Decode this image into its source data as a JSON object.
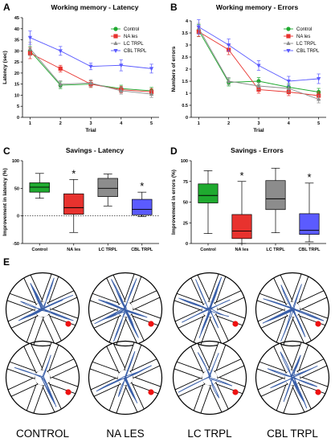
{
  "panels": {
    "a": {
      "letter": "A",
      "title": "Working memory - Latency"
    },
    "b": {
      "letter": "B",
      "title": "Working memory - Errors"
    },
    "c": {
      "letter": "C",
      "title": "Savings - Latency"
    },
    "d": {
      "letter": "D",
      "title": "Savings - Errors"
    },
    "e": {
      "letter": "E"
    }
  },
  "colors": {
    "control": "#1faa2f",
    "na_les": "#e8322e",
    "lc_trpl": "#8c8c8c",
    "cbl_trpl": "#5b5bff",
    "path": "#3a5fa8",
    "target": "#ee1111"
  },
  "chart_data": [
    {
      "type": "line",
      "title": "Working memory - Latency",
      "xlabel": "Trial",
      "ylabel": "Latency (sec)",
      "x": [
        1,
        2,
        3,
        4,
        5
      ],
      "xlim": [
        0.75,
        5.25
      ],
      "ylim": [
        0,
        45
      ],
      "yticks": [
        0,
        5,
        10,
        15,
        20,
        25,
        30,
        35,
        40,
        45
      ],
      "legend": "top-right",
      "grid": false,
      "series": [
        {
          "name": "Control",
          "values": [
            30,
            14.5,
            15,
            13,
            12
          ],
          "err": [
            2,
            1.5,
            1.5,
            1.5,
            1.5
          ],
          "marker": "circle",
          "color": "#1faa2f"
        },
        {
          "name": "NA les",
          "values": [
            29,
            22,
            15,
            12.5,
            11.5
          ],
          "err": [
            2.5,
            1.5,
            1.5,
            1.5,
            1.5
          ],
          "marker": "square",
          "color": "#e8322e"
        },
        {
          "name": "LC TRPL",
          "values": [
            31,
            15,
            15.5,
            12,
            10.5
          ],
          "err": [
            3,
            1.5,
            1.5,
            1.5,
            1.5
          ],
          "marker": "triangle-up",
          "color": "#8c8c8c"
        },
        {
          "name": "CBL TRPL",
          "values": [
            36,
            30,
            23,
            23.5,
            22
          ],
          "err": [
            3,
            2,
            1.5,
            2.5,
            2
          ],
          "marker": "triangle-down",
          "color": "#5b5bff"
        }
      ]
    },
    {
      "type": "line",
      "title": "Working memory - Errors",
      "xlabel": "Trial",
      "ylabel": "Numbers of errors",
      "x": [
        1,
        2,
        3,
        4,
        5
      ],
      "xlim": [
        0.75,
        5.25
      ],
      "ylim": [
        0,
        4
      ],
      "yticks": [
        0,
        0.5,
        1,
        1.5,
        2,
        2.5,
        3,
        3.5,
        4
      ],
      "legend": "top-right",
      "grid": false,
      "series": [
        {
          "name": "Control",
          "values": [
            3.6,
            1.45,
            1.5,
            1.25,
            1.05
          ],
          "err": [
            0.25,
            0.15,
            0.15,
            0.15,
            0.15
          ],
          "marker": "circle",
          "color": "#1faa2f"
        },
        {
          "name": "NA les",
          "values": [
            3.55,
            2.8,
            1.15,
            1.05,
            0.9
          ],
          "err": [
            0.2,
            0.2,
            0.15,
            0.15,
            0.15
          ],
          "marker": "square",
          "color": "#e8322e"
        },
        {
          "name": "LC TRPL",
          "values": [
            3.7,
            1.5,
            1.3,
            1.2,
            0.75
          ],
          "err": [
            0.2,
            0.15,
            0.15,
            0.15,
            0.15
          ],
          "marker": "triangle-up",
          "color": "#8c8c8c"
        },
        {
          "name": "CBL TRPL",
          "values": [
            3.75,
            3.0,
            2.15,
            1.5,
            1.6
          ],
          "err": [
            0.3,
            0.25,
            0.2,
            0.2,
            0.2
          ],
          "marker": "triangle-down",
          "color": "#5b5bff"
        }
      ]
    },
    {
      "type": "box",
      "title": "Savings - Latency",
      "ylabel": "Improvement in latency (%)",
      "categories": [
        "Control",
        "NA les",
        "LC TRPL",
        "CBL TRPL"
      ],
      "ylim": [
        -50,
        100
      ],
      "yticks": [
        -50,
        0,
        50,
        100
      ],
      "reference_line": 0,
      "boxes": [
        {
          "min": 32,
          "q1": 43,
          "median": 52,
          "q3": 60,
          "max": 77,
          "color": "#1faa2f",
          "star": false
        },
        {
          "min": -30,
          "q1": 3,
          "median": 15,
          "q3": 40,
          "max": 66,
          "color": "#e8322e",
          "star": true
        },
        {
          "min": 18,
          "q1": 35,
          "median": 50,
          "q3": 68,
          "max": 76,
          "color": "#8c8c8c",
          "star": false
        },
        {
          "min": -1,
          "q1": 2,
          "median": 12,
          "q3": 30,
          "max": 43,
          "color": "#5b5bff",
          "star": true
        }
      ],
      "star_symbol": "*"
    },
    {
      "type": "box",
      "title": "Savings - Errors",
      "ylabel": "Improvement in errors (%)",
      "categories": [
        "Control",
        "NA les",
        "LC TRPL",
        "CBL TRPL"
      ],
      "ylim": [
        0,
        100
      ],
      "yticks": [
        0,
        25,
        50,
        75,
        100
      ],
      "boxes": [
        {
          "min": 12,
          "q1": 49,
          "median": 58,
          "q3": 72,
          "max": 88,
          "color": "#1faa2f",
          "star": false
        },
        {
          "min": 0,
          "q1": 6,
          "median": 15,
          "q3": 35,
          "max": 75,
          "color": "#e8322e",
          "star": true
        },
        {
          "min": 13,
          "q1": 41,
          "median": 54,
          "q3": 76,
          "max": 91,
          "color": "#8c8c8c",
          "star": false
        },
        {
          "min": 2,
          "q1": 11,
          "median": 16,
          "q3": 36,
          "max": 73,
          "color": "#5b5bff",
          "star": true
        }
      ],
      "star_symbol": "*"
    }
  ],
  "tracks": {
    "groups": [
      "CONTROL",
      "NA LES",
      "LC TRPL",
      "CBL TRPL"
    ],
    "arms_per_maze": 8,
    "rows": 2
  }
}
